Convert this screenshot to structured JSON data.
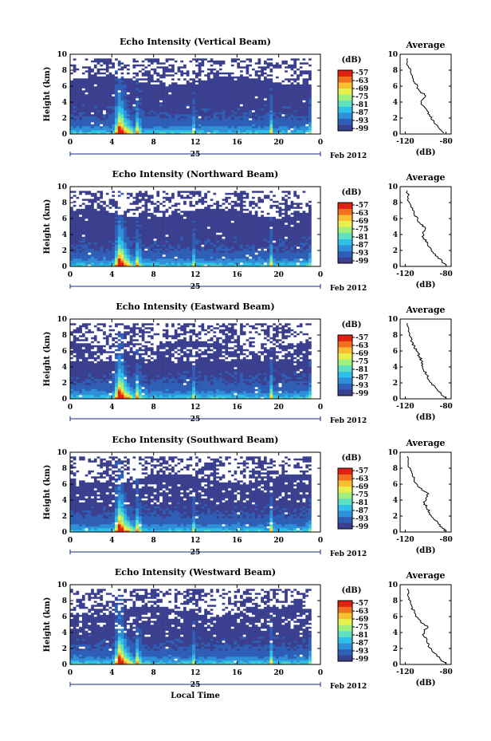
{
  "chart_data": [
    {
      "type": "heatmap",
      "title": "Echo Intensity (Vertical Beam)",
      "ylabel": "Height (km)",
      "x_ticks": [
        "0",
        "4",
        "8",
        "12",
        "16",
        "20",
        "0"
      ],
      "y_ticks": [
        "0",
        "2",
        "4",
        "6",
        "8",
        "10"
      ],
      "date_label": "25",
      "date_suffix": "Feb 2012",
      "colorbar": {
        "label": "(dB)",
        "ticks": [
          "-57",
          "-63",
          "-69",
          "-75",
          "-81",
          "-87",
          "-93",
          "-99"
        ]
      },
      "average": {
        "title": "Average",
        "xlabel": "(dB)",
        "x_ticks": [
          "-120",
          "-80"
        ],
        "y_ticks": [
          "0",
          "2",
          "4",
          "6",
          "8",
          "10"
        ],
        "x": [
          -82,
          -86,
          -90,
          -94,
          -96,
          -99,
          -103,
          -104,
          -100,
          -105,
          -108,
          -111,
          -113,
          -115,
          -117,
          -118
        ],
        "y": [
          0.1,
          0.6,
          1.2,
          1.8,
          2.4,
          3.0,
          3.6,
          4.2,
          4.8,
          5.3,
          5.9,
          6.5,
          7.1,
          7.8,
          8.5,
          9.5
        ]
      }
    },
    {
      "type": "heatmap",
      "title": "Echo Intensity (Northward Beam)",
      "ylabel": "Height (km)",
      "x_ticks": [
        "0",
        "4",
        "8",
        "12",
        "16",
        "20",
        "0"
      ],
      "y_ticks": [
        "0",
        "2",
        "4",
        "6",
        "8",
        "10"
      ],
      "date_label": "25",
      "date_suffix": "Feb 2012",
      "colorbar": {
        "label": "(dB)",
        "ticks": [
          "-57",
          "-63",
          "-69",
          "-75",
          "-81",
          "-87",
          "-93",
          "-99"
        ]
      },
      "average": {
        "title": "Average",
        "xlabel": "(dB)",
        "x_ticks": [
          "-120",
          "-80"
        ],
        "y_ticks": [
          "0",
          "2",
          "4",
          "6",
          "8",
          "10"
        ],
        "x": [
          -80,
          -84,
          -88,
          -93,
          -96,
          -98,
          -102,
          -103,
          -100,
          -105,
          -108,
          -111,
          -113,
          -115,
          -117,
          -118
        ],
        "y": [
          0.1,
          0.6,
          1.2,
          1.8,
          2.4,
          3.0,
          3.6,
          4.2,
          4.8,
          5.3,
          5.9,
          6.5,
          7.1,
          7.8,
          8.5,
          9.5
        ]
      }
    },
    {
      "type": "heatmap",
      "title": "Echo Intensity (Eastward Beam)",
      "ylabel": "Height (km)",
      "x_ticks": [
        "0",
        "4",
        "8",
        "12",
        "16",
        "20",
        "0"
      ],
      "y_ticks": [
        "0",
        "2",
        "4",
        "6",
        "8",
        "10"
      ],
      "date_label": "25",
      "date_suffix": "Feb 2012",
      "colorbar": {
        "label": "(dB)",
        "ticks": [
          "-57",
          "-63",
          "-69",
          "-75",
          "-81",
          "-87",
          "-93",
          "-99"
        ]
      },
      "average": {
        "title": "Average",
        "xlabel": "(dB)",
        "x_ticks": [
          "-120",
          "-80"
        ],
        "y_ticks": [
          "0",
          "2",
          "4",
          "6",
          "8",
          "10"
        ],
        "x": [
          -80,
          -85,
          -89,
          -94,
          -97,
          -99,
          -102,
          -104,
          -104,
          -106,
          -108,
          -111,
          -113,
          -115,
          -117,
          -118
        ],
        "y": [
          0.1,
          0.6,
          1.2,
          1.8,
          2.4,
          3.0,
          3.6,
          4.2,
          4.8,
          5.3,
          5.9,
          6.5,
          7.1,
          7.8,
          8.5,
          9.5
        ]
      }
    },
    {
      "type": "heatmap",
      "title": "Echo Intensity (Southward Beam)",
      "ylabel": "Height (km)",
      "x_ticks": [
        "0",
        "4",
        "8",
        "12",
        "16",
        "20",
        "0"
      ],
      "y_ticks": [
        "0",
        "2",
        "4",
        "6",
        "8",
        "10"
      ],
      "date_label": "25",
      "date_suffix": "Feb 2012",
      "colorbar": {
        "label": "(dB)",
        "ticks": [
          "-57",
          "-63",
          "-69",
          "-75",
          "-81",
          "-87",
          "-93",
          "-99"
        ]
      },
      "average": {
        "title": "Average",
        "xlabel": "(dB)",
        "x_ticks": [
          "-120",
          "-80"
        ],
        "y_ticks": [
          "0",
          "2",
          "4",
          "6",
          "8",
          "10"
        ],
        "x": [
          -80,
          -84,
          -88,
          -93,
          -96,
          -99,
          -101,
          -100,
          -97,
          -104,
          -108,
          -111,
          -113,
          -115,
          -117,
          -118
        ],
        "y": [
          0.1,
          0.6,
          1.2,
          1.8,
          2.4,
          3.0,
          3.6,
          4.2,
          4.8,
          5.3,
          5.9,
          6.5,
          7.1,
          7.8,
          8.5,
          9.5
        ]
      }
    },
    {
      "type": "heatmap",
      "title": "Echo Intensity (Westward Beam)",
      "ylabel": "Height (km)",
      "x_ticks": [
        "0",
        "4",
        "8",
        "12",
        "16",
        "20",
        "0"
      ],
      "y_ticks": [
        "0",
        "2",
        "4",
        "6",
        "8",
        "10"
      ],
      "date_label": "25",
      "date_suffix": "Feb 2012",
      "xlabel": "Local Time",
      "colorbar": {
        "label": "(dB)",
        "ticks": [
          "-57",
          "-63",
          "-69",
          "-75",
          "-81",
          "-87",
          "-93",
          "-99"
        ]
      },
      "average": {
        "title": "Average",
        "xlabel": "(dB)",
        "x_ticks": [
          "-120",
          "-80"
        ],
        "y_ticks": [
          "0",
          "2",
          "4",
          "6",
          "8",
          "10"
        ],
        "x": [
          -80,
          -85,
          -89,
          -94,
          -97,
          -99,
          -102,
          -101,
          -98,
          -105,
          -108,
          -111,
          -113,
          -115,
          -117,
          -118
        ],
        "y": [
          0.1,
          0.6,
          1.2,
          1.8,
          2.4,
          3.0,
          3.6,
          4.2,
          4.8,
          5.3,
          5.9,
          6.5,
          7.1,
          7.8,
          8.5,
          9.5
        ]
      }
    }
  ],
  "colors": {
    "background_echo": "#3a3f8f",
    "colormap": [
      "#3a3f8f",
      "#2f5fb5",
      "#2f8fd8",
      "#2fc0e8",
      "#5fe0c0",
      "#a0f080",
      "#e8f050",
      "#f8c030",
      "#f07020",
      "#e02010"
    ]
  }
}
